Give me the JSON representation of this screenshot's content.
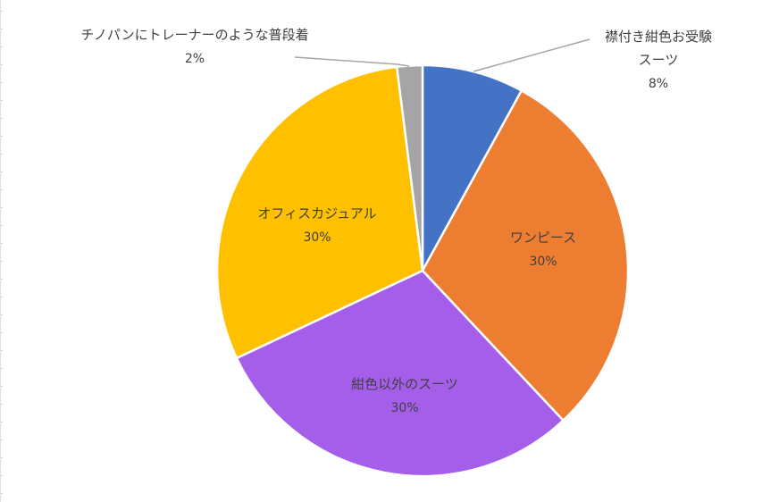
{
  "chart_data": {
    "type": "pie",
    "title": "",
    "slices": [
      {
        "label": "襟付き紺色お受験スーツ",
        "label_lines": [
          "襟付き紺色お受験",
          "スーツ"
        ],
        "value": 8,
        "display": "8%",
        "color": "#4472C4"
      },
      {
        "label": "ワンピース",
        "label_lines": [
          "ワンピース"
        ],
        "value": 30,
        "display": "30%",
        "color": "#ED7D31"
      },
      {
        "label": "紺色以外のスーツ",
        "label_lines": [
          "紺色以外のスーツ"
        ],
        "value": 30,
        "display": "30%",
        "color": "#A55EEA"
      },
      {
        "label": "オフィスカジュアル",
        "label_lines": [
          "オフィスカジュアル"
        ],
        "value": 30,
        "display": "30%",
        "color": "#FFC000"
      },
      {
        "label": "チノパンにトレーナーのような普段着",
        "label_lines": [
          "チノパンにトレーナーのような普段着"
        ],
        "value": 2,
        "display": "2%",
        "color": "#A5A5A5"
      }
    ],
    "legend": "none",
    "data_labels": "category name and percentage"
  }
}
